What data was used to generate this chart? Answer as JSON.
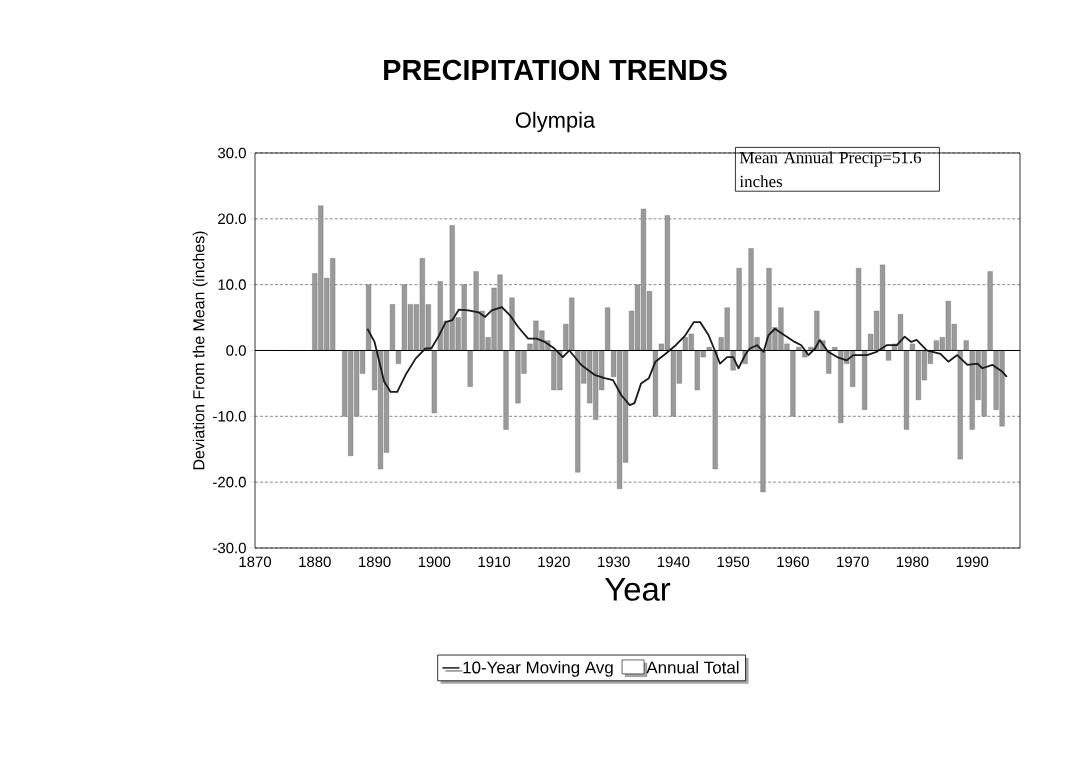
{
  "chart_data": {
    "type": "bar",
    "title": "PRECIPITATION TRENDS",
    "subtitle": "Olympia",
    "xlabel": "Year",
    "ylabel": "Deviation From the Mean (inches)",
    "annotations": [
      "Mean Annual Precip=51.6 inches"
    ],
    "xlim": [
      1870,
      1998
    ],
    "xticks": [
      1870,
      1880,
      1890,
      1900,
      1910,
      1920,
      1930,
      1940,
      1950,
      1960,
      1970,
      1980,
      1990
    ],
    "ylim": [
      -30,
      30
    ],
    "yticks": [
      {
        "value": -30,
        "label": "-30.0"
      },
      {
        "value": -20,
        "label": "-20.0"
      },
      {
        "value": -10,
        "label": "-10.0"
      },
      {
        "value": 0,
        "label": "0.0"
      },
      {
        "value": 10,
        "label": "10.0"
      },
      {
        "value": 20,
        "label": "20.0"
      },
      {
        "value": 30,
        "label": "30.0"
      }
    ],
    "grid": "y",
    "legend": "bottom",
    "ref_lines": [
      {
        "axis": "y",
        "value": 0,
        "color": "#000000"
      }
    ],
    "series": [
      {
        "name": "Annual Total",
        "color": "#9a9a9a",
        "x": [
          1880,
          1881,
          1882,
          1883,
          1884,
          1885,
          1886,
          1887,
          1888,
          1889,
          1890,
          1891,
          1892,
          1893,
          1894,
          1895,
          1896,
          1897,
          1898,
          1899,
          1900,
          1901,
          1902,
          1903,
          1904,
          1905,
          1906,
          1907,
          1908,
          1909,
          1910,
          1911,
          1912,
          1913,
          1914,
          1915,
          1916,
          1917,
          1918,
          1919,
          1920,
          1921,
          1922,
          1923,
          1924,
          1925,
          1926,
          1927,
          1928,
          1929,
          1930,
          1931,
          1932,
          1933,
          1934,
          1935,
          1936,
          1937,
          1938,
          1939,
          1940,
          1941,
          1942,
          1943,
          1944,
          1945,
          1946,
          1947,
          1948,
          1949,
          1950,
          1951,
          1952,
          1953,
          1954,
          1955,
          1956,
          1957,
          1958,
          1959,
          1960,
          1961,
          1962,
          1963,
          1964,
          1965,
          1966,
          1967,
          1968,
          1969,
          1970,
          1971,
          1972,
          1973,
          1974,
          1975,
          1976,
          1977,
          1978,
          1979,
          1980,
          1981,
          1982,
          1983,
          1984,
          1985,
          1986,
          1987,
          1988,
          1989,
          1990,
          1991,
          1992,
          1993,
          1994,
          1995
        ],
        "values": [
          11.7,
          22,
          11,
          14,
          null,
          -10,
          -16,
          -10,
          -3.5,
          10,
          -6,
          -18,
          -15.5,
          7,
          -2,
          10,
          7,
          7,
          14,
          7,
          -9.5,
          10.5,
          4.5,
          19,
          5,
          10,
          -5.5,
          12,
          6,
          2,
          9.5,
          11.5,
          -12,
          8,
          -8,
          -3.5,
          1,
          4.5,
          3,
          1.5,
          -6,
          -6,
          4,
          8,
          -18.5,
          -5,
          -8,
          -10.5,
          -6,
          6.5,
          -4,
          -21,
          -17,
          6,
          10,
          21.5,
          9,
          -10,
          1,
          20.5,
          -10,
          -5,
          2,
          2.5,
          -6,
          -1,
          0.5,
          -18,
          2,
          6.5,
          -3,
          12.5,
          -2,
          15.5,
          2,
          -21.5,
          12.5,
          3.5,
          6.5,
          1,
          -10,
          0.5,
          -1,
          0.5,
          6,
          1.5,
          -3.5,
          0.5,
          -11,
          -2,
          -5.5,
          12.5,
          -9,
          2.5,
          6,
          13,
          -1.5,
          1,
          5.5,
          -12,
          1,
          -7.5,
          -4.5,
          -2,
          1.5,
          2,
          7.5,
          4,
          -16.5,
          1.5,
          -12,
          -7.5,
          -10,
          12,
          -9,
          -11.5
        ]
      },
      {
        "name": "10-Year Moving Avg",
        "type": "line",
        "color": "#1a1a1a",
        "marker": "none",
        "x": [
          1888.8,
          1890,
          1891.6,
          1892.7,
          1893.8,
          1895.2,
          1896.9,
          1898.5,
          1899.5,
          1900.8,
          1901.9,
          1903,
          1904.1,
          1905.7,
          1907.4,
          1908.5,
          1909.6,
          1911.3,
          1912.7,
          1914,
          1915.7,
          1917.1,
          1918.5,
          1920.1,
          1921.5,
          1922.6,
          1924.6,
          1926.8,
          1928.5,
          1929.9,
          1931.3,
          1932.7,
          1933.5,
          1934.6,
          1935.9,
          1937,
          1938.7,
          1940.4,
          1942,
          1943.4,
          1944.5,
          1945.9,
          1946.8,
          1947.8,
          1949,
          1950,
          1950.9,
          1952,
          1952.8,
          1954,
          1955.1,
          1955.9,
          1957,
          1958.6,
          1960.3,
          1961.4,
          1962.6,
          1963.7,
          1964.5,
          1965.9,
          1967.4,
          1969,
          1970.1,
          1972.4,
          1974,
          1975.7,
          1977.4,
          1978.7,
          1979.8,
          1980.7,
          1982.4,
          1984.7,
          1986,
          1987.5,
          1989.2,
          1990.9,
          1991.7,
          1993.4,
          1995,
          1995.8
        ],
        "values": [
          3.3,
          1.3,
          -4.7,
          -6.3,
          -6.3,
          -3.7,
          -1.2,
          0.3,
          0.3,
          2.3,
          4.3,
          4.6,
          6.2,
          6.1,
          5.8,
          5.1,
          6.1,
          6.6,
          5.3,
          3.6,
          1.8,
          1.8,
          1.3,
          0.3,
          -1,
          0,
          -2.2,
          -3.7,
          -4.2,
          -4.5,
          -6.8,
          -8.3,
          -8,
          -5,
          -4.2,
          -1.7,
          -0.5,
          0.8,
          2.3,
          4.3,
          4.3,
          2.3,
          0.3,
          -2,
          -1,
          -1,
          -2.7,
          -0.7,
          0.3,
          0.8,
          -0.2,
          2.3,
          3.3,
          2.3,
          1.3,
          0.8,
          -0.7,
          0.3,
          1.6,
          -0.2,
          -1,
          -1.5,
          -0.7,
          -0.7,
          -0.2,
          0.8,
          0.8,
          2.1,
          1.3,
          1.6,
          0,
          -0.5,
          -1.7,
          -0.7,
          -2.2,
          -2,
          -2.7,
          -2.2,
          -3.2,
          -4
        ]
      }
    ]
  }
}
